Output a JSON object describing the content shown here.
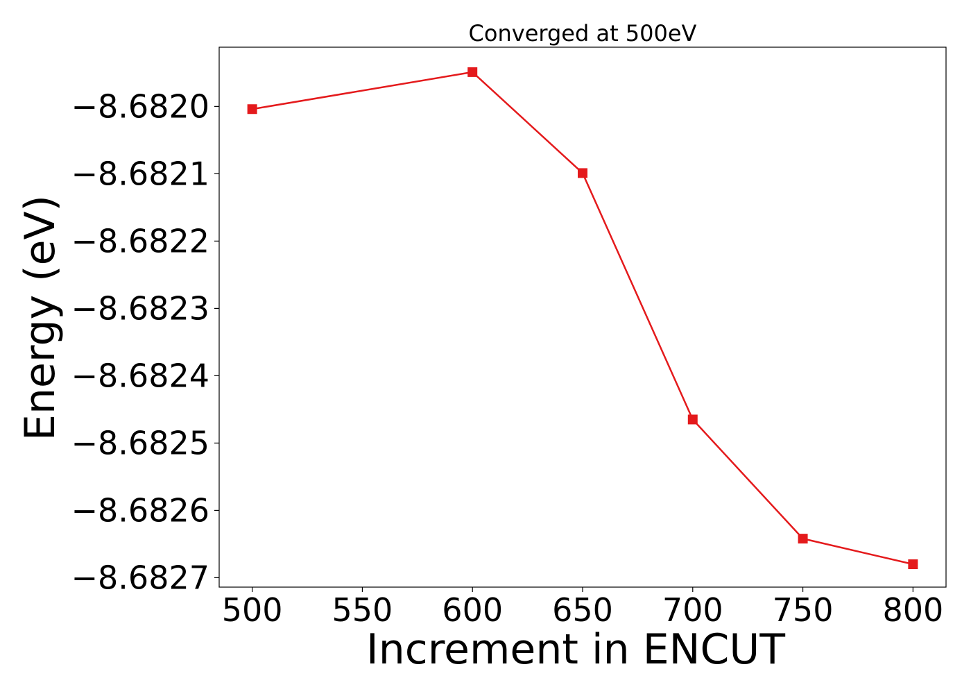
{
  "chart_data": {
    "type": "line",
    "title": "Converged at 500eV",
    "xlabel": "Increment in ENCUT",
    "ylabel": "Energy (eV)",
    "xlim": [
      485,
      815
    ],
    "ylim": [
      -8.682714,
      -8.681912
    ],
    "xticks": [
      500,
      550,
      600,
      650,
      700,
      750,
      800
    ],
    "xtick_labels": [
      "500",
      "550",
      "600",
      "650",
      "700",
      "750",
      "800"
    ],
    "yticks": [
      -8.682,
      -8.6821,
      -8.6822,
      -8.6823,
      -8.6824,
      -8.6825,
      -8.6826,
      -8.6827
    ],
    "ytick_labels": [
      "−8.6820",
      "−8.6821",
      "−8.6822",
      "−8.6823",
      "−8.6824",
      "−8.6825",
      "−8.6826",
      "−8.6827"
    ],
    "grid": false,
    "series": [
      {
        "color": "#e41a1c",
        "marker": "square",
        "points": [
          {
            "x": 500,
            "y": -8.682004
          },
          {
            "x": 600,
            "y": -8.681949
          },
          {
            "x": 650,
            "y": -8.682099
          },
          {
            "x": 700,
            "y": -8.682465
          },
          {
            "x": 750,
            "y": -8.682642
          },
          {
            "x": 800,
            "y": -8.68268
          }
        ]
      }
    ]
  }
}
